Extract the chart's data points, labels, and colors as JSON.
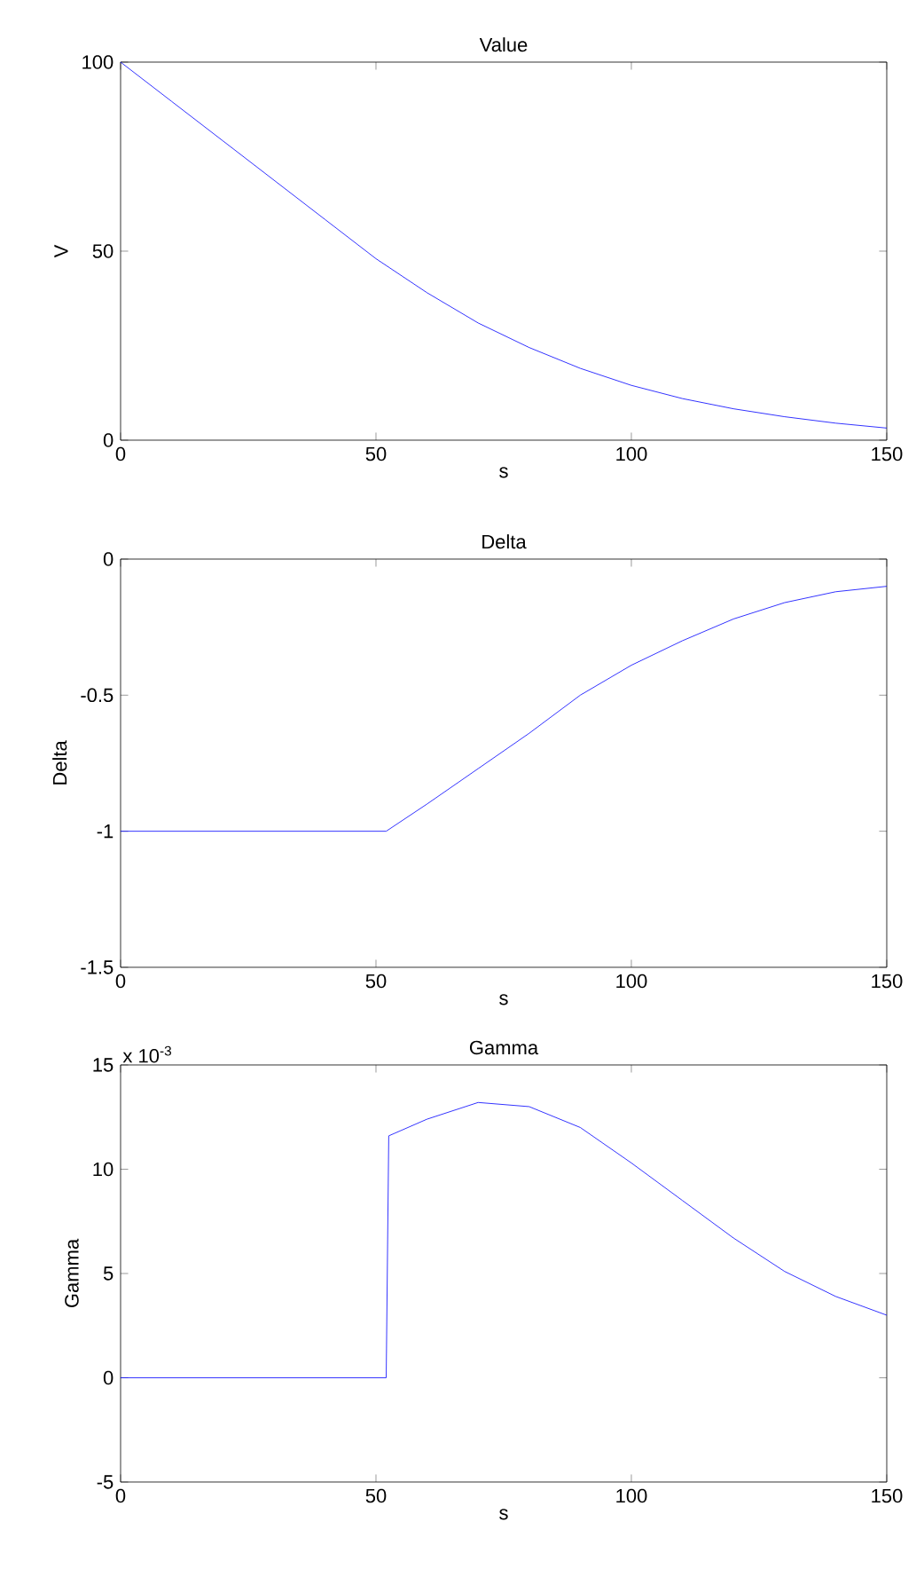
{
  "chart_data": [
    {
      "type": "line",
      "title": "Value",
      "xlabel": "s",
      "ylabel": "V",
      "color": "#0000ff",
      "xlim": [
        0,
        150
      ],
      "ylim": [
        0,
        100
      ],
      "xticks": [
        0,
        50,
        100,
        150
      ],
      "yticks": [
        0,
        50,
        100
      ],
      "x": [
        0,
        10,
        20,
        30,
        40,
        50,
        60,
        70,
        80,
        90,
        100,
        110,
        120,
        130,
        140,
        150
      ],
      "values": [
        100,
        89.6,
        79.2,
        68.8,
        58.4,
        48,
        39,
        31,
        24.5,
        19,
        14.5,
        11,
        8.3,
        6.2,
        4.5,
        3.2
      ]
    },
    {
      "type": "line",
      "title": "Delta",
      "xlabel": "s",
      "ylabel": "Delta",
      "color": "#0000ff",
      "xlim": [
        0,
        150
      ],
      "ylim": [
        -1.5,
        0
      ],
      "xticks": [
        0,
        50,
        100,
        150
      ],
      "yticks": [
        -1.5,
        -1,
        -0.5,
        0
      ],
      "x": [
        0,
        52,
        60,
        70,
        80,
        90,
        100,
        110,
        120,
        130,
        140,
        150
      ],
      "values": [
        -1,
        -1,
        -0.9,
        -0.77,
        -0.64,
        -0.5,
        -0.39,
        -0.3,
        -0.22,
        -0.16,
        -0.12,
        -0.1
      ]
    },
    {
      "type": "line",
      "title": "Gamma",
      "xlabel": "s",
      "ylabel": "Gamma",
      "color": "#0000ff",
      "xlim": [
        0,
        150
      ],
      "ylim": [
        -5,
        15
      ],
      "xticks": [
        0,
        50,
        100,
        150
      ],
      "yticks": [
        -5,
        0,
        5,
        10,
        15
      ],
      "annotations": [
        "x 10$^{-3}$"
      ],
      "x": [
        0,
        52,
        52.5,
        60,
        70,
        80,
        90,
        100,
        110,
        120,
        130,
        140,
        150
      ],
      "values": [
        0,
        0,
        11.6,
        12.4,
        13.2,
        13.0,
        12.0,
        10.3,
        8.5,
        6.7,
        5.1,
        3.9,
        3.0
      ]
    }
  ]
}
